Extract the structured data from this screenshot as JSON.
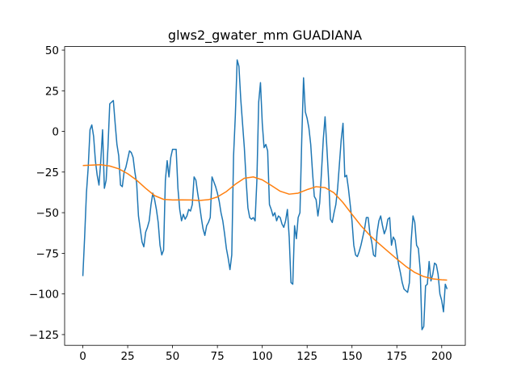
{
  "chart_data": {
    "type": "line",
    "title": "glws2_gwater_mm GUADIANA",
    "xlim": [
      -10.15,
      213.15
    ],
    "ylim": [
      -131.6,
      52.2
    ],
    "xticks": [
      0,
      25,
      50,
      75,
      100,
      125,
      150,
      175,
      200
    ],
    "yticks": [
      50,
      25,
      0,
      {
        "value": -25,
        "label": "−25"
      },
      {
        "value": -50,
        "label": "−50"
      },
      {
        "value": -75,
        "label": "−75"
      },
      {
        "value": -100,
        "label": "−100"
      },
      {
        "value": -125,
        "label": "−125"
      }
    ],
    "grid": false,
    "series": [
      {
        "color": "#1f77b4",
        "x": [
          0,
          1,
          2,
          3,
          4,
          5,
          6,
          7,
          8,
          9,
          10,
          11,
          12,
          13,
          14,
          15,
          16,
          17,
          18,
          19,
          20,
          21,
          22,
          23,
          24,
          25,
          26,
          27,
          28,
          29,
          30,
          31,
          32,
          33,
          34,
          35,
          36,
          37,
          38,
          39,
          40,
          41,
          42,
          43,
          44,
          45,
          46,
          47,
          48,
          49,
          50,
          51,
          52,
          53,
          54,
          55,
          56,
          57,
          58,
          59,
          60,
          61,
          62,
          63,
          64,
          65,
          66,
          67,
          68,
          69,
          70,
          71,
          72,
          73,
          74,
          75,
          76,
          77,
          78,
          79,
          80,
          81,
          82,
          83,
          84,
          85,
          86,
          87,
          88,
          89,
          90,
          91,
          92,
          93,
          94,
          95,
          96,
          97,
          98,
          99,
          100,
          101,
          102,
          103,
          104,
          105,
          106,
          107,
          108,
          109,
          110,
          111,
          112,
          113,
          114,
          115,
          116,
          117,
          118,
          119,
          120,
          121,
          122,
          123,
          124,
          125,
          126,
          127,
          128,
          129,
          130,
          131,
          132,
          133,
          134,
          135,
          136,
          137,
          138,
          139,
          140,
          141,
          142,
          143,
          144,
          145,
          146,
          147,
          148,
          149,
          150,
          151,
          152,
          153,
          154,
          155,
          156,
          157,
          158,
          159,
          160,
          161,
          162,
          163,
          164,
          165,
          166,
          167,
          168,
          169,
          170,
          171,
          172,
          173,
          174,
          175,
          176,
          177,
          178,
          179,
          180,
          181,
          182,
          183,
          184,
          185,
          186,
          187,
          188,
          189,
          190,
          191,
          192,
          193,
          194,
          195,
          196,
          197,
          198,
          199,
          200,
          201,
          202,
          203
        ],
        "values": [
          -89,
          -65,
          -38,
          -22,
          1,
          4,
          -3,
          -18,
          -27,
          -33,
          -18,
          1,
          -35,
          -30,
          -10,
          17,
          18,
          19,
          5,
          -8,
          -15,
          -33,
          -34,
          -25,
          -22,
          -17,
          -12,
          -13,
          -16,
          -25,
          -32,
          -52,
          -60,
          -68,
          -71,
          -62,
          -59,
          -55,
          -45,
          -38,
          -42,
          -48,
          -56,
          -70,
          -76,
          -73,
          -30,
          -18,
          -28,
          -16,
          -11,
          -11,
          -11,
          -35,
          -48,
          -55,
          -51,
          -54,
          -52,
          -48,
          -49,
          -45,
          -28,
          -30,
          -38,
          -45,
          -53,
          -60,
          -64,
          -58,
          -56,
          -53,
          -28,
          -31,
          -34,
          -38,
          -43,
          -50,
          -55,
          -63,
          -72,
          -78,
          -85,
          -76,
          -15,
          10,
          44,
          40,
          20,
          5,
          -10,
          -30,
          -47,
          -53,
          -54,
          -53,
          -55,
          -30,
          18,
          30,
          5,
          -10,
          -8,
          -12,
          -45,
          -48,
          -52,
          -50,
          -55,
          -52,
          -53,
          -57,
          -59,
          -55,
          -48,
          -65,
          -93,
          -94,
          -58,
          -66,
          -53,
          -50,
          -5,
          33,
          12,
          8,
          2,
          -8,
          -25,
          -40,
          -42,
          -52,
          -44,
          -25,
          -5,
          9,
          -10,
          -30,
          -54,
          -56,
          -50,
          -45,
          -35,
          -20,
          -5,
          5,
          -28,
          -27,
          -35,
          -45,
          -55,
          -70,
          -76,
          -77,
          -74,
          -70,
          -65,
          -60,
          -53,
          -53,
          -63,
          -68,
          -76,
          -77,
          -62,
          -55,
          -52,
          -58,
          -63,
          -60,
          -54,
          -53,
          -70,
          -65,
          -67,
          -75,
          -82,
          -87,
          -93,
          -97,
          -98,
          -99,
          -93,
          -67,
          -52,
          -56,
          -70,
          -72,
          -85,
          -122,
          -120,
          -95,
          -94,
          -80,
          -92,
          -88,
          -81,
          -82,
          -88,
          -100,
          -104,
          -111,
          -94,
          -97
        ]
      },
      {
        "color": "#ff7f0e",
        "x": [
          0,
          5,
          10,
          15,
          20,
          25,
          30,
          35,
          40,
          45,
          50,
          55,
          60,
          65,
          70,
          75,
          80,
          85,
          90,
          95,
          100,
          105,
          110,
          115,
          120,
          125,
          130,
          135,
          140,
          145,
          150,
          155,
          160,
          165,
          170,
          175,
          180,
          185,
          190,
          195,
          200,
          203
        ],
        "values": [
          -21,
          -20.7,
          -20.5,
          -21.3,
          -23,
          -26,
          -30,
          -35,
          -39.5,
          -41.8,
          -42.2,
          -42.1,
          -42.2,
          -42.5,
          -42,
          -40.3,
          -37,
          -32.5,
          -28.8,
          -28,
          -29.8,
          -33.2,
          -36.8,
          -38.6,
          -38,
          -35.8,
          -34,
          -34.6,
          -37.8,
          -43.8,
          -51,
          -58,
          -64,
          -69,
          -73.8,
          -78.5,
          -83,
          -86.8,
          -89.3,
          -90.7,
          -91.3,
          -91.5
        ]
      }
    ]
  }
}
